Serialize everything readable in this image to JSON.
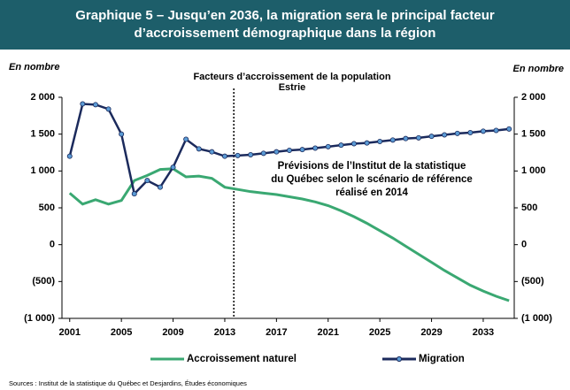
{
  "chart_data": {
    "type": "line",
    "title": [
      "Graphique 5 – Jusqu’en 2036, la migration sera le principal facteur",
      "d’accroissement démographique dans la région"
    ],
    "subtitle": [
      "Facteurs d’accroissement de la population",
      "Estrie"
    ],
    "y_label": "En nombre",
    "y2_label": "En nombre",
    "annotation": [
      "Prévisions de l’Institut de la statistique",
      "du Québec selon le scénario de référence",
      "réalisé en 2014"
    ],
    "divider_x": 2013.7,
    "source": "Sources : Institut de la statistique du Québec et Desjardins, Études économiques",
    "x": [
      2001,
      2002,
      2003,
      2004,
      2005,
      2006,
      2007,
      2008,
      2009,
      2010,
      2011,
      2012,
      2013,
      2014,
      2015,
      2016,
      2017,
      2018,
      2019,
      2020,
      2021,
      2022,
      2023,
      2024,
      2025,
      2026,
      2027,
      2028,
      2029,
      2030,
      2031,
      2032,
      2033,
      2034,
      2035
    ],
    "series": [
      {
        "name": "Accroissement naturel",
        "color": "#3aa872",
        "marker": false,
        "values": [
          700,
          550,
          610,
          550,
          600,
          870,
          940,
          1020,
          1030,
          920,
          930,
          900,
          780,
          750,
          720,
          700,
          680,
          650,
          620,
          580,
          530,
          460,
          380,
          290,
          190,
          90,
          -20,
          -130,
          -240,
          -350,
          -450,
          -550,
          -630,
          -700,
          -760
        ]
      },
      {
        "name": "Migration",
        "color": "#1b2a5c",
        "marker": true,
        "marker_color": "#5b9bd5",
        "values": [
          1200,
          1910,
          1900,
          1840,
          1500,
          690,
          870,
          780,
          1050,
          1430,
          1300,
          1260,
          1200,
          1210,
          1220,
          1240,
          1260,
          1280,
          1290,
          1310,
          1330,
          1350,
          1370,
          1380,
          1400,
          1420,
          1440,
          1450,
          1470,
          1490,
          1510,
          1520,
          1540,
          1550,
          1570
        ]
      }
    ],
    "xlim": [
      2000.4,
      2035.4
    ],
    "xticks": [
      2001,
      2005,
      2009,
      2013,
      2017,
      2021,
      2025,
      2029,
      2033
    ],
    "ylim": [
      -1000,
      2000
    ],
    "yticks": [
      {
        "value": 2000,
        "label": "2 000"
      },
      {
        "value": 1500,
        "label": "1 500"
      },
      {
        "value": 1000,
        "label": "1 000"
      },
      500,
      0,
      {
        "value": -500,
        "label": "(500)"
      },
      {
        "value": -1000,
        "label": "(1 000)"
      }
    ],
    "y2lim": [
      -1000,
      2000
    ],
    "y2ticks": [
      {
        "value": 2000,
        "label": "2 000"
      },
      {
        "value": 1500,
        "label": "1 500"
      },
      {
        "value": 1000,
        "label": "1 000"
      },
      500,
      0,
      {
        "value": -500,
        "label": "(500)"
      },
      {
        "value": -1000,
        "label": "(1 000)"
      }
    ],
    "title_background": "#1d5e6a"
  }
}
